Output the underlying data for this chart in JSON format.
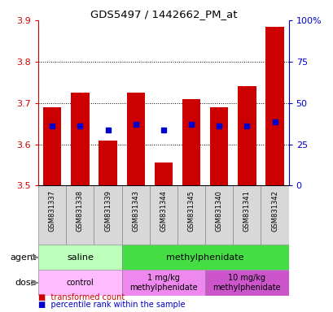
{
  "title": "GDS5497 / 1442662_PM_at",
  "samples": [
    "GSM831337",
    "GSM831338",
    "GSM831339",
    "GSM831343",
    "GSM831344",
    "GSM831345",
    "GSM831340",
    "GSM831341",
    "GSM831342"
  ],
  "bar_values": [
    3.69,
    3.725,
    3.61,
    3.725,
    3.555,
    3.71,
    3.69,
    3.74,
    3.885
  ],
  "percentile_values": [
    3.645,
    3.645,
    3.635,
    3.648,
    3.635,
    3.648,
    3.645,
    3.645,
    3.655
  ],
  "ymin": 3.5,
  "ymax": 3.9,
  "bar_color": "#cc0000",
  "percentile_color": "#0000cc",
  "agent_groups": [
    {
      "label": "saline",
      "start": 0,
      "end": 3,
      "color": "#bbffbb"
    },
    {
      "label": "methylphenidate",
      "start": 3,
      "end": 9,
      "color": "#44dd44"
    }
  ],
  "dose_groups": [
    {
      "label": "control",
      "start": 0,
      "end": 3,
      "color": "#ffbbff"
    },
    {
      "label": "1 mg/kg\nmethylphenidate",
      "start": 3,
      "end": 6,
      "color": "#ee88ee"
    },
    {
      "label": "10 mg/kg\nmethylphenidate",
      "start": 6,
      "end": 9,
      "color": "#cc55cc"
    }
  ],
  "right_yticks": [
    0,
    25,
    50,
    75,
    100
  ],
  "right_yticklabels": [
    "0",
    "25",
    "50",
    "75",
    "100%"
  ],
  "legend_items": [
    {
      "color": "#cc0000",
      "label": "transformed count"
    },
    {
      "color": "#0000cc",
      "label": "percentile rank within the sample"
    }
  ],
  "left_ytick_labels": [
    "3.5",
    "3.6",
    "3.7",
    "3.8",
    "3.9"
  ],
  "left_ytick_vals": [
    3.5,
    3.6,
    3.7,
    3.8,
    3.9
  ],
  "grid_lines": [
    3.6,
    3.7,
    3.8
  ]
}
